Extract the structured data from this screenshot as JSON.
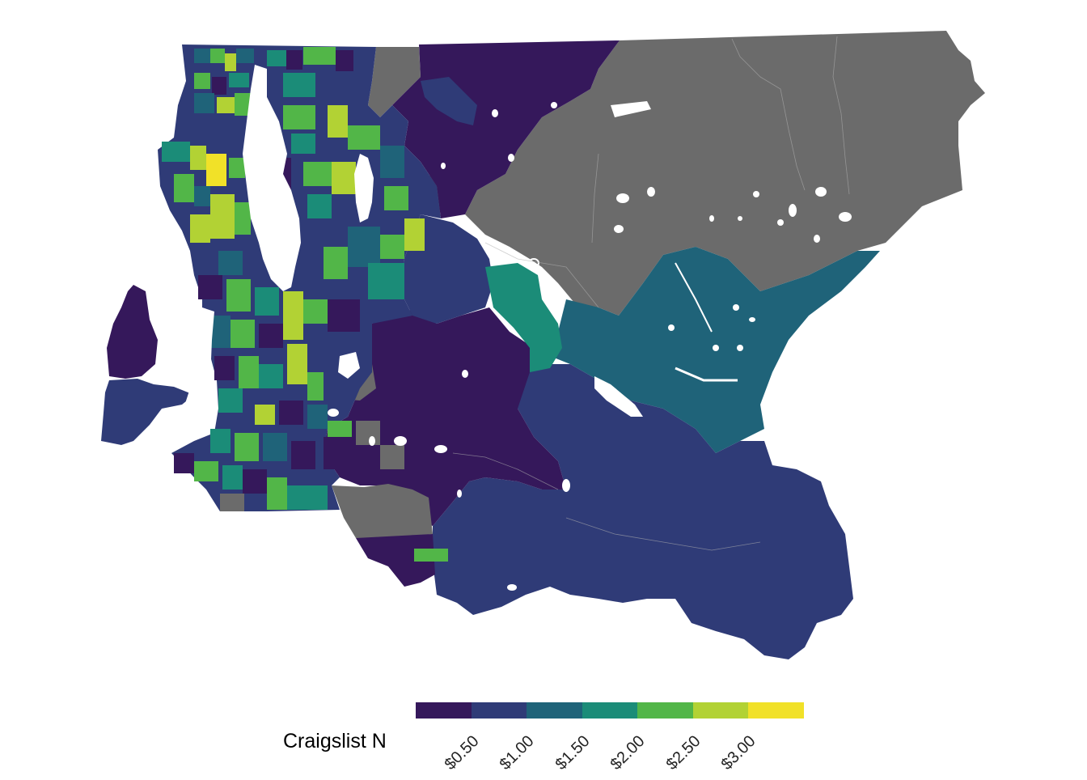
{
  "legend": {
    "title": "Craigslist N",
    "colors": [
      "#35185b",
      "#2f3b77",
      "#1f6379",
      "#1b8c78",
      "#52b648",
      "#b2d234",
      "#f1e128"
    ],
    "tick_labels": [
      "$0.50",
      "$1.00",
      "$1.50",
      "$2.00",
      "$2.50",
      "$3.00"
    ]
  },
  "map": {
    "na_color": "#707070",
    "water_color": "#ffffff"
  }
}
